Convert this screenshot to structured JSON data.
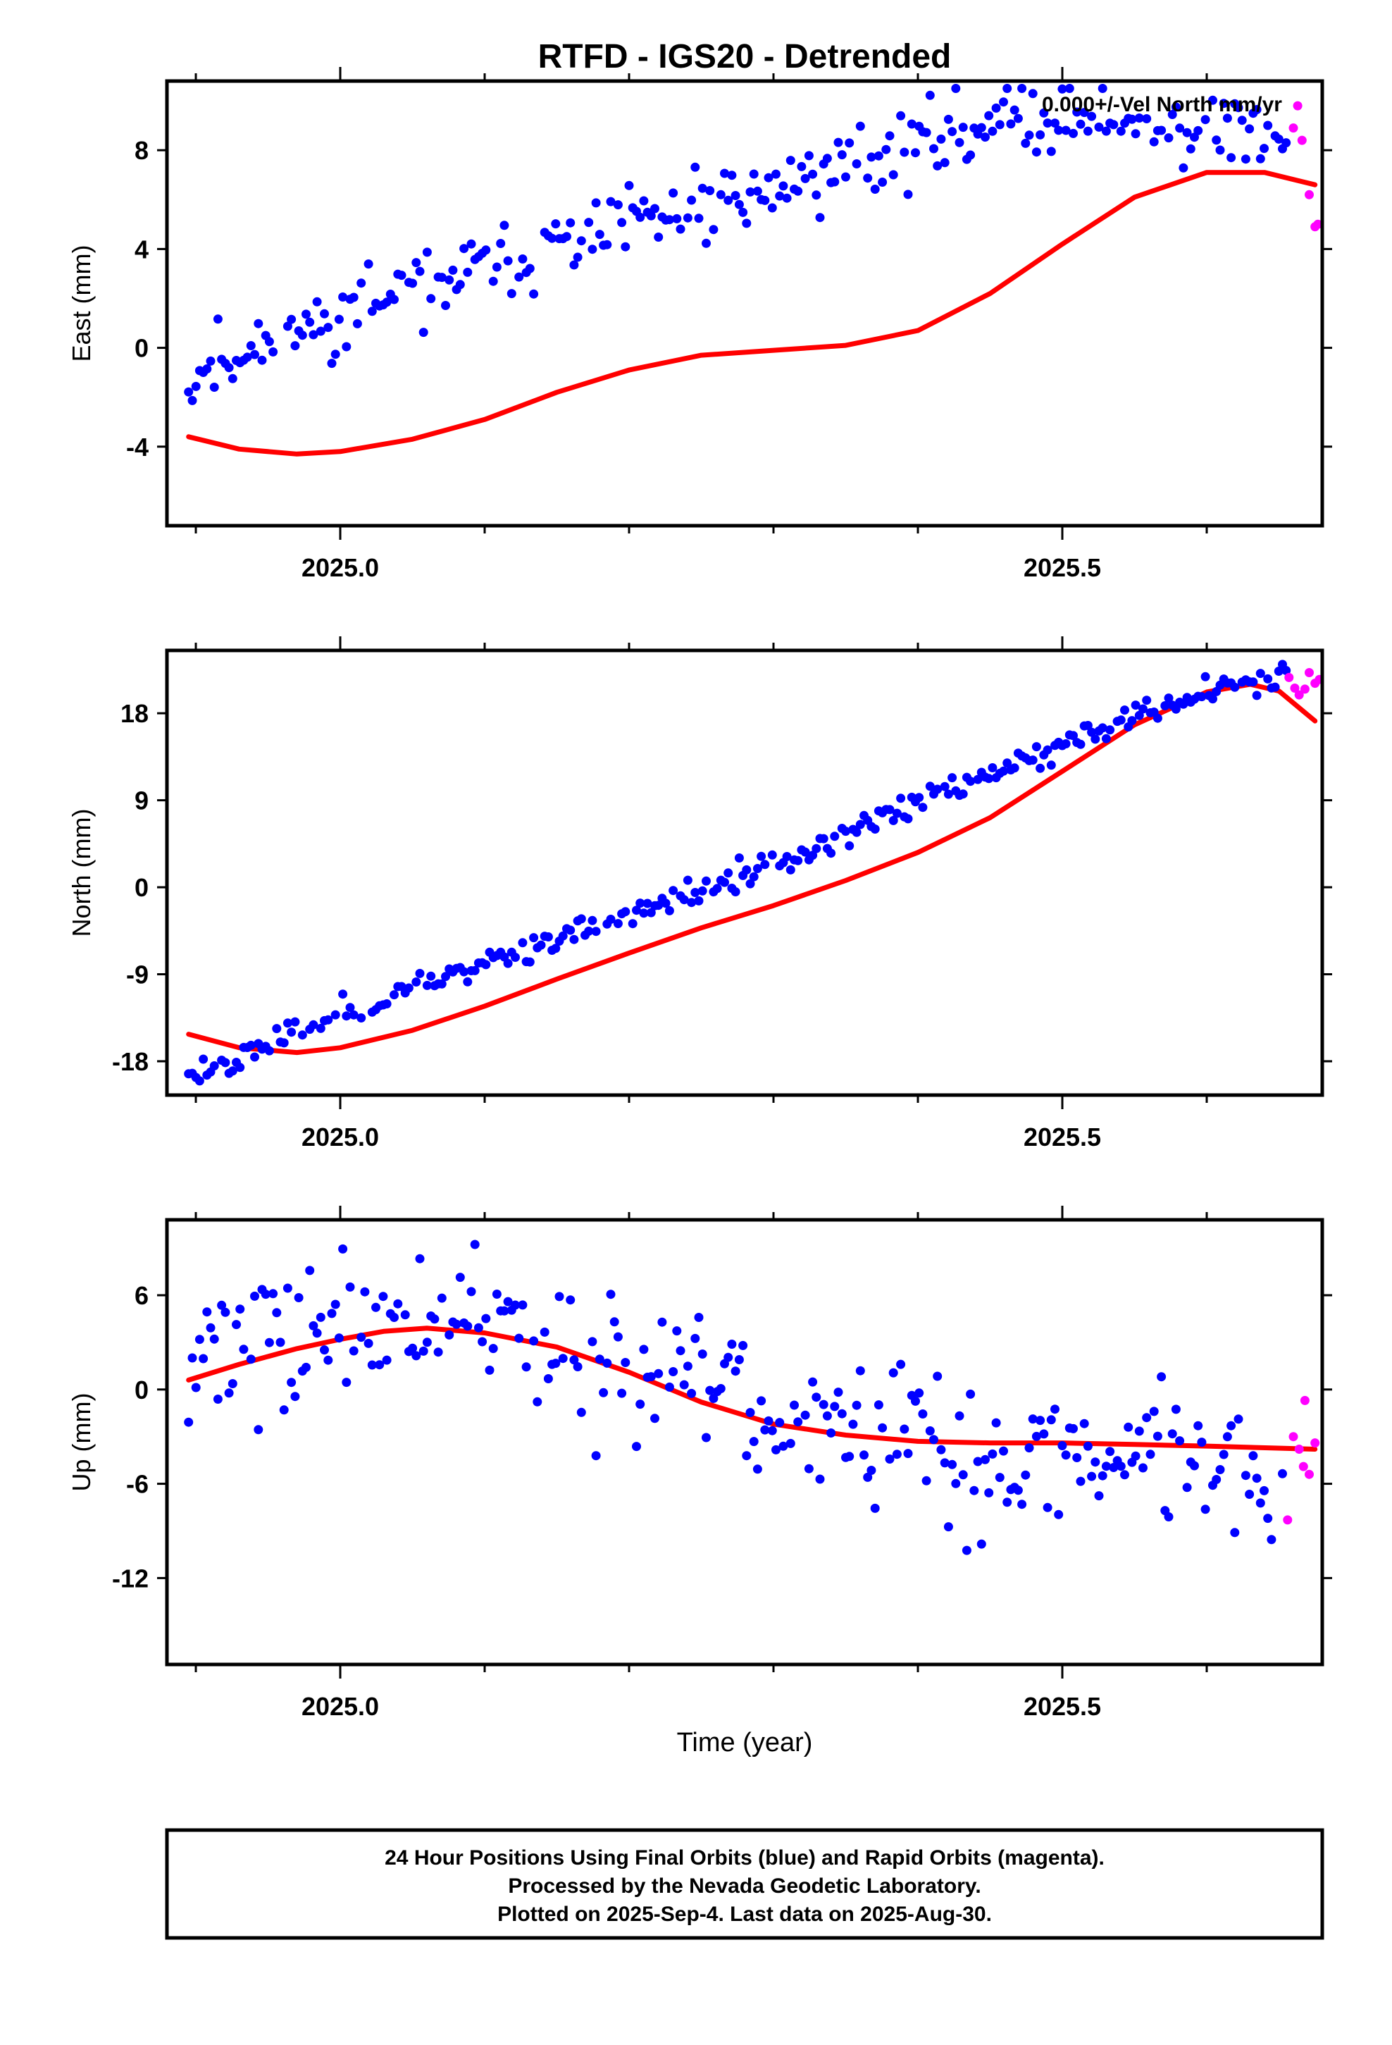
{
  "title": "RTFD - IGS20 - Detrended",
  "xlabel": "Time (year)",
  "colors": {
    "final": "#0000ff",
    "rapid": "#ff00ff",
    "fit": "#ff0000",
    "frame": "#000000"
  },
  "caption": [
    "24 Hour Positions Using Final Orbits (blue) and Rapid Orbits (magenta).",
    "Processed by the Nevada Geodetic Laboratory.",
    "Plotted on 2025-Sep-4. Last data on 2025-Aug-30."
  ],
  "chart_data": [
    {
      "type": "scatter",
      "ylabel": "East (mm)",
      "annotation": "0.000+/-Vel North mm/yr",
      "xlim": [
        2024.88,
        2025.68
      ],
      "ylim": [
        -7.2,
        10.8
      ],
      "yticks": [
        -4,
        0,
        4,
        8
      ],
      "ytick_labels": [
        "-4",
        "0",
        "4",
        "8"
      ],
      "xticks": [
        2025.0,
        2025.5
      ],
      "xtick_labels": [
        "2025.0",
        "2025.5"
      ],
      "minor_xticks": [
        2024.9,
        2025.1,
        2025.2,
        2025.3,
        2025.4,
        2025.6
      ],
      "trend": [
        -1.0,
        3.0,
        6.0,
        9.5,
        8.5
      ],
      "wiggle": 1.0,
      "seed": 11,
      "rapid_points": [
        [
          2025.663,
          9.8
        ],
        [
          2025.666,
          8.4
        ],
        [
          2025.671,
          6.2
        ],
        [
          2025.675,
          4.9
        ],
        [
          2025.677,
          5.0
        ],
        [
          2025.66,
          8.9
        ]
      ],
      "fit": [
        [
          2024.895,
          -3.6
        ],
        [
          2024.93,
          -4.1
        ],
        [
          2024.97,
          -4.3
        ],
        [
          2025.0,
          -4.2
        ],
        [
          2025.05,
          -3.7
        ],
        [
          2025.1,
          -2.9
        ],
        [
          2025.15,
          -1.8
        ],
        [
          2025.2,
          -0.9
        ],
        [
          2025.25,
          -0.3
        ],
        [
          2025.3,
          -0.1
        ],
        [
          2025.35,
          0.1
        ],
        [
          2025.4,
          0.7
        ],
        [
          2025.45,
          2.2
        ],
        [
          2025.5,
          4.2
        ],
        [
          2025.55,
          6.1
        ],
        [
          2025.6,
          7.1
        ],
        [
          2025.64,
          7.1
        ],
        [
          2025.675,
          6.6
        ]
      ]
    },
    {
      "type": "scatter",
      "ylabel": "North (mm)",
      "xlim": [
        2024.88,
        2025.68
      ],
      "ylim": [
        -21.5,
        24.5
      ],
      "yticks": [
        -18,
        -9,
        0,
        9,
        18
      ],
      "ytick_labels": [
        "-18",
        "-9",
        "0",
        "9",
        "18"
      ],
      "xticks": [
        2025.0,
        2025.5
      ],
      "xtick_labels": [
        "2025.0",
        "2025.5"
      ],
      "minor_xticks": [
        2024.9,
        2025.1,
        2025.2,
        2025.3,
        2025.4,
        2025.6
      ],
      "trend": [
        -19.5,
        -13.0,
        -7.0,
        -2.0,
        4.0,
        11.0,
        17.5,
        22.5
      ],
      "wiggle": 0.9,
      "seed": 23,
      "rapid_points": [
        [
          2025.657,
          21.7
        ],
        [
          2025.661,
          20.6
        ],
        [
          2025.664,
          19.9
        ],
        [
          2025.668,
          20.5
        ],
        [
          2025.671,
          22.2
        ],
        [
          2025.675,
          21.1
        ],
        [
          2025.678,
          21.5
        ]
      ],
      "fit": [
        [
          2024.895,
          -15.2
        ],
        [
          2024.93,
          -16.6
        ],
        [
          2024.97,
          -17.1
        ],
        [
          2025.0,
          -16.6
        ],
        [
          2025.05,
          -14.8
        ],
        [
          2025.1,
          -12.3
        ],
        [
          2025.15,
          -9.5
        ],
        [
          2025.2,
          -6.8
        ],
        [
          2025.25,
          -4.2
        ],
        [
          2025.3,
          -1.9
        ],
        [
          2025.35,
          0.7
        ],
        [
          2025.4,
          3.6
        ],
        [
          2025.45,
          7.2
        ],
        [
          2025.5,
          12.0
        ],
        [
          2025.55,
          16.8
        ],
        [
          2025.6,
          20.2
        ],
        [
          2025.63,
          21.0
        ],
        [
          2025.65,
          20.3
        ],
        [
          2025.675,
          17.2
        ]
      ]
    },
    {
      "type": "scatter",
      "ylabel": "Up (mm)",
      "xlim": [
        2024.88,
        2025.68
      ],
      "ylim": [
        -17.5,
        10.8
      ],
      "yticks": [
        -12,
        -6,
        0,
        6
      ],
      "ytick_labels": [
        "-12",
        "-6",
        "0",
        "6"
      ],
      "xticks": [
        2025.0,
        2025.5
      ],
      "xtick_labels": [
        "2025.0",
        "2025.5"
      ],
      "minor_xticks": [
        2024.9,
        2025.1,
        2025.2,
        2025.3,
        2025.4,
        2025.6
      ],
      "trend": [
        2.5,
        4.5,
        4.0,
        1.0,
        -2.5,
        -4.5,
        -3.5,
        -5.5
      ],
      "wiggle": 3.0,
      "seed": 37,
      "rapid_points": [
        [
          2025.656,
          -8.3
        ],
        [
          2025.66,
          -3.0
        ],
        [
          2025.664,
          -3.8
        ],
        [
          2025.668,
          -0.7
        ],
        [
          2025.671,
          -5.4
        ],
        [
          2025.675,
          -3.4
        ],
        [
          2025.667,
          -4.9
        ]
      ],
      "fit": [
        [
          2024.895,
          0.6
        ],
        [
          2024.93,
          1.6
        ],
        [
          2024.97,
          2.6
        ],
        [
          2025.0,
          3.2
        ],
        [
          2025.03,
          3.7
        ],
        [
          2025.06,
          3.9
        ],
        [
          2025.1,
          3.6
        ],
        [
          2025.15,
          2.7
        ],
        [
          2025.2,
          1.1
        ],
        [
          2025.25,
          -0.8
        ],
        [
          2025.3,
          -2.2
        ],
        [
          2025.35,
          -2.9
        ],
        [
          2025.4,
          -3.3
        ],
        [
          2025.45,
          -3.4
        ],
        [
          2025.5,
          -3.4
        ],
        [
          2025.55,
          -3.5
        ],
        [
          2025.6,
          -3.6
        ],
        [
          2025.675,
          -3.8
        ]
      ]
    }
  ]
}
